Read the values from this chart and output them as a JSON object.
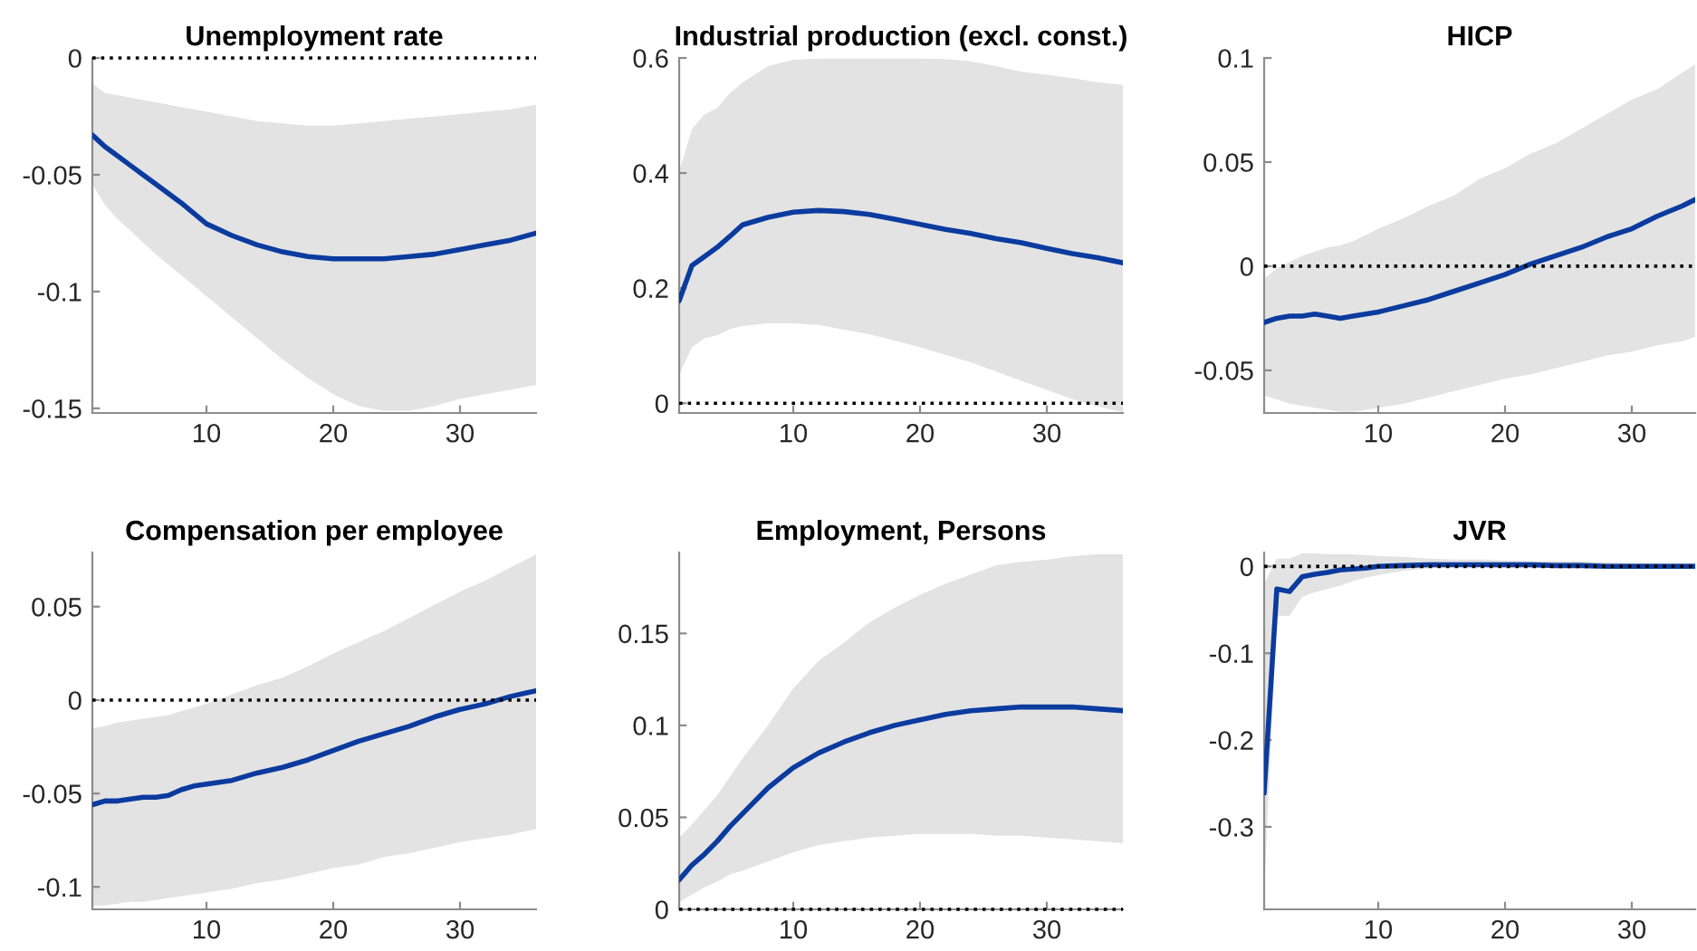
{
  "chart_data": [
    {
      "type": "line",
      "title": "Unemployment rate",
      "xlim": [
        1,
        36
      ],
      "xticks": [
        10,
        20,
        30
      ],
      "ylim": [
        -0.152,
        0
      ],
      "yticks": [
        -0.15,
        -0.1,
        -0.05,
        0
      ],
      "series": [
        {
          "color": "#0b3b9f",
          "x": [
            1,
            2,
            3,
            4,
            5,
            6,
            8,
            10,
            12,
            14,
            16,
            18,
            20,
            22,
            24,
            26,
            28,
            30,
            32,
            34,
            36
          ],
          "values": [
            -0.033,
            -0.038,
            -0.042,
            -0.046,
            -0.05,
            -0.054,
            -0.062,
            -0.071,
            -0.076,
            -0.08,
            -0.083,
            -0.085,
            -0.086,
            -0.086,
            -0.086,
            -0.085,
            -0.084,
            -0.082,
            -0.08,
            -0.078,
            -0.075
          ],
          "upper": [
            -0.011,
            -0.015,
            -0.016,
            -0.017,
            -0.018,
            -0.019,
            -0.021,
            -0.023,
            -0.025,
            -0.027,
            -0.028,
            -0.029,
            -0.029,
            -0.028,
            -0.027,
            -0.026,
            -0.025,
            -0.024,
            -0.023,
            -0.022,
            -0.02
          ],
          "lower": [
            -0.054,
            -0.063,
            -0.069,
            -0.074,
            -0.079,
            -0.084,
            -0.093,
            -0.102,
            -0.111,
            -0.12,
            -0.129,
            -0.137,
            -0.144,
            -0.149,
            -0.151,
            -0.151,
            -0.149,
            -0.146,
            -0.144,
            -0.142,
            -0.14
          ]
        }
      ],
      "ref_lines": [
        {
          "axis": "y",
          "value": 0,
          "color": "#000000",
          "line_style": "dotted"
        }
      ]
    },
    {
      "type": "line",
      "title": "Industrial production (excl. const.)",
      "xlim": [
        1,
        36
      ],
      "xticks": [
        10,
        20,
        30
      ],
      "ylim": [
        -0.017,
        0.6
      ],
      "yticks": [
        0,
        0.2,
        0.4,
        0.6
      ],
      "series": [
        {
          "color": "#0b3b9f",
          "x": [
            1,
            2,
            3,
            4,
            5,
            6,
            8,
            10,
            12,
            14,
            16,
            18,
            20,
            22,
            24,
            26,
            28,
            30,
            32,
            34,
            36
          ],
          "values": [
            0.178,
            0.239,
            0.255,
            0.271,
            0.29,
            0.31,
            0.323,
            0.332,
            0.335,
            0.333,
            0.328,
            0.32,
            0.311,
            0.302,
            0.295,
            0.286,
            0.279,
            0.269,
            0.26,
            0.253,
            0.244
          ],
          "upper": [
            0.402,
            0.476,
            0.502,
            0.513,
            0.539,
            0.557,
            0.586,
            0.597,
            0.599,
            0.599,
            0.599,
            0.599,
            0.599,
            0.598,
            0.594,
            0.586,
            0.576,
            0.571,
            0.565,
            0.558,
            0.553
          ],
          "lower": [
            0.049,
            0.097,
            0.113,
            0.118,
            0.129,
            0.134,
            0.139,
            0.139,
            0.136,
            0.128,
            0.12,
            0.109,
            0.097,
            0.084,
            0.071,
            0.055,
            0.039,
            0.023,
            0.007,
            -0.005,
            -0.016
          ]
        }
      ],
      "ref_lines": [
        {
          "axis": "y",
          "value": 0,
          "color": "#000000",
          "line_style": "dotted"
        }
      ]
    },
    {
      "type": "line",
      "title": "HICP",
      "xlim": [
        1,
        35
      ],
      "xticks": [
        10,
        20,
        30
      ],
      "ylim": [
        -0.0705,
        0.1
      ],
      "yticks": [
        -0.05,
        0,
        0.05,
        0.1
      ],
      "series": [
        {
          "color": "#0b3b9f",
          "x": [
            1,
            2,
            3,
            4,
            5,
            6,
            7,
            8,
            9,
            10,
            12,
            14,
            16,
            18,
            20,
            22,
            24,
            26,
            28,
            30,
            32,
            34,
            35
          ],
          "values": [
            -0.027,
            -0.025,
            -0.024,
            -0.024,
            -0.023,
            -0.024,
            -0.025,
            -0.024,
            -0.023,
            -0.022,
            -0.019,
            -0.016,
            -0.012,
            -0.008,
            -0.004,
            0.001,
            0.005,
            0.009,
            0.014,
            0.018,
            0.024,
            0.029,
            0.032
          ],
          "upper": [
            -0.006,
            -0.001,
            0.002,
            0.005,
            0.007,
            0.009,
            0.01,
            0.012,
            0.015,
            0.018,
            0.023,
            0.029,
            0.034,
            0.042,
            0.047,
            0.054,
            0.059,
            0.066,
            0.073,
            0.08,
            0.085,
            0.093,
            0.097
          ],
          "lower": [
            -0.062,
            -0.064,
            -0.066,
            -0.067,
            -0.068,
            -0.069,
            -0.07,
            -0.07,
            -0.069,
            -0.068,
            -0.066,
            -0.063,
            -0.06,
            -0.057,
            -0.054,
            -0.052,
            -0.049,
            -0.046,
            -0.043,
            -0.041,
            -0.038,
            -0.036,
            -0.034
          ]
        }
      ],
      "ref_lines": [
        {
          "axis": "y",
          "value": 0,
          "color": "#000000",
          "line_style": "dotted"
        }
      ]
    },
    {
      "type": "line",
      "title": "Compensation per employee",
      "xlim": [
        1,
        36
      ],
      "xticks": [
        10,
        20,
        30
      ],
      "ylim": [
        -0.112,
        0.079
      ],
      "yticks": [
        -0.1,
        -0.05,
        0,
        0.05
      ],
      "series": [
        {
          "color": "#0b3b9f",
          "x": [
            1,
            2,
            3,
            4,
            5,
            6,
            7,
            8,
            9,
            10,
            12,
            14,
            16,
            18,
            20,
            22,
            24,
            26,
            28,
            30,
            32,
            34,
            36
          ],
          "values": [
            -0.056,
            -0.054,
            -0.054,
            -0.053,
            -0.052,
            -0.052,
            -0.051,
            -0.048,
            -0.046,
            -0.045,
            -0.043,
            -0.039,
            -0.036,
            -0.032,
            -0.027,
            -0.022,
            -0.018,
            -0.014,
            -0.009,
            -0.005,
            -0.002,
            0.002,
            0.005
          ],
          "upper": [
            -0.015,
            -0.014,
            -0.012,
            -0.011,
            -0.01,
            -0.009,
            -0.008,
            -0.006,
            -0.004,
            -0.002,
            0.003,
            0.008,
            0.012,
            0.018,
            0.025,
            0.031,
            0.037,
            0.044,
            0.051,
            0.058,
            0.064,
            0.071,
            0.078
          ],
          "lower": [
            -0.11,
            -0.11,
            -0.109,
            -0.108,
            -0.108,
            -0.107,
            -0.106,
            -0.105,
            -0.104,
            -0.103,
            -0.101,
            -0.098,
            -0.096,
            -0.093,
            -0.09,
            -0.088,
            -0.084,
            -0.082,
            -0.079,
            -0.076,
            -0.074,
            -0.072,
            -0.069
          ]
        }
      ],
      "ref_lines": [
        {
          "axis": "y",
          "value": 0,
          "color": "#000000",
          "line_style": "dotted"
        }
      ]
    },
    {
      "type": "line",
      "title": "Employment, Persons",
      "xlim": [
        1,
        36
      ],
      "xticks": [
        10,
        20,
        30
      ],
      "ylim": [
        0,
        0.194
      ],
      "yticks": [
        0,
        0.05,
        0.1,
        0.15
      ],
      "series": [
        {
          "color": "#0b3b9f",
          "x": [
            1,
            2,
            3,
            4,
            5,
            6,
            8,
            10,
            12,
            14,
            16,
            18,
            20,
            22,
            24,
            26,
            28,
            30,
            32,
            34,
            36
          ],
          "values": [
            0.016,
            0.024,
            0.03,
            0.037,
            0.045,
            0.052,
            0.066,
            0.077,
            0.085,
            0.091,
            0.096,
            0.1,
            0.103,
            0.106,
            0.108,
            0.109,
            0.11,
            0.11,
            0.11,
            0.109,
            0.108
          ],
          "upper": [
            0.039,
            0.046,
            0.054,
            0.062,
            0.072,
            0.082,
            0.1,
            0.12,
            0.135,
            0.145,
            0.156,
            0.164,
            0.171,
            0.177,
            0.182,
            0.187,
            0.189,
            0.19,
            0.192,
            0.193,
            0.193
          ],
          "lower": [
            0.004,
            0.008,
            0.012,
            0.015,
            0.019,
            0.021,
            0.026,
            0.031,
            0.035,
            0.037,
            0.039,
            0.04,
            0.041,
            0.041,
            0.041,
            0.04,
            0.04,
            0.039,
            0.038,
            0.037,
            0.036
          ]
        }
      ],
      "ref_lines": [
        {
          "axis": "y",
          "value": 0,
          "color": "#000000",
          "line_style": "dotted"
        }
      ]
    },
    {
      "type": "line",
      "title": "JVR",
      "xlim": [
        1,
        35
      ],
      "xticks": [
        10,
        20,
        30
      ],
      "ylim": [
        -0.395,
        0.016
      ],
      "yticks": [
        -0.3,
        -0.2,
        -0.1,
        0
      ],
      "series": [
        {
          "color": "#0b3b9f",
          "x": [
            1,
            2,
            3,
            4,
            5,
            6,
            7,
            8,
            9,
            10,
            12,
            14,
            16,
            18,
            20,
            22,
            24,
            26,
            28,
            30,
            32,
            34,
            35
          ],
          "values": [
            -0.261,
            -0.026,
            -0.029,
            -0.012,
            -0.009,
            -0.007,
            -0.004,
            -0.003,
            -0.002,
            0,
            0.001,
            0.002,
            0.002,
            0.002,
            0.002,
            0.002,
            0.001,
            0.001,
            0,
            0,
            0,
            0,
            0
          ],
          "upper": [
            -0.02,
            0.009,
            0.009,
            0.015,
            0.015,
            0.014,
            0.014,
            0.014,
            0.013,
            0.012,
            0.011,
            0.009,
            0.008,
            0.008,
            0.007,
            0.006,
            0.006,
            0.006,
            0.005,
            0.004,
            0.004,
            0.004,
            0.004
          ],
          "lower": [
            -0.375,
            -0.057,
            -0.057,
            -0.035,
            -0.03,
            -0.026,
            -0.022,
            -0.017,
            -0.013,
            -0.01,
            -0.005,
            -0.002,
            -0.001,
            -0.001,
            -0.002,
            -0.002,
            -0.002,
            -0.002,
            -0.002,
            -0.002,
            -0.002,
            -0.002,
            -0.002
          ]
        }
      ],
      "ref_lines": [
        {
          "axis": "y",
          "value": 0,
          "color": "#000000",
          "line_style": "dotted"
        }
      ]
    }
  ]
}
